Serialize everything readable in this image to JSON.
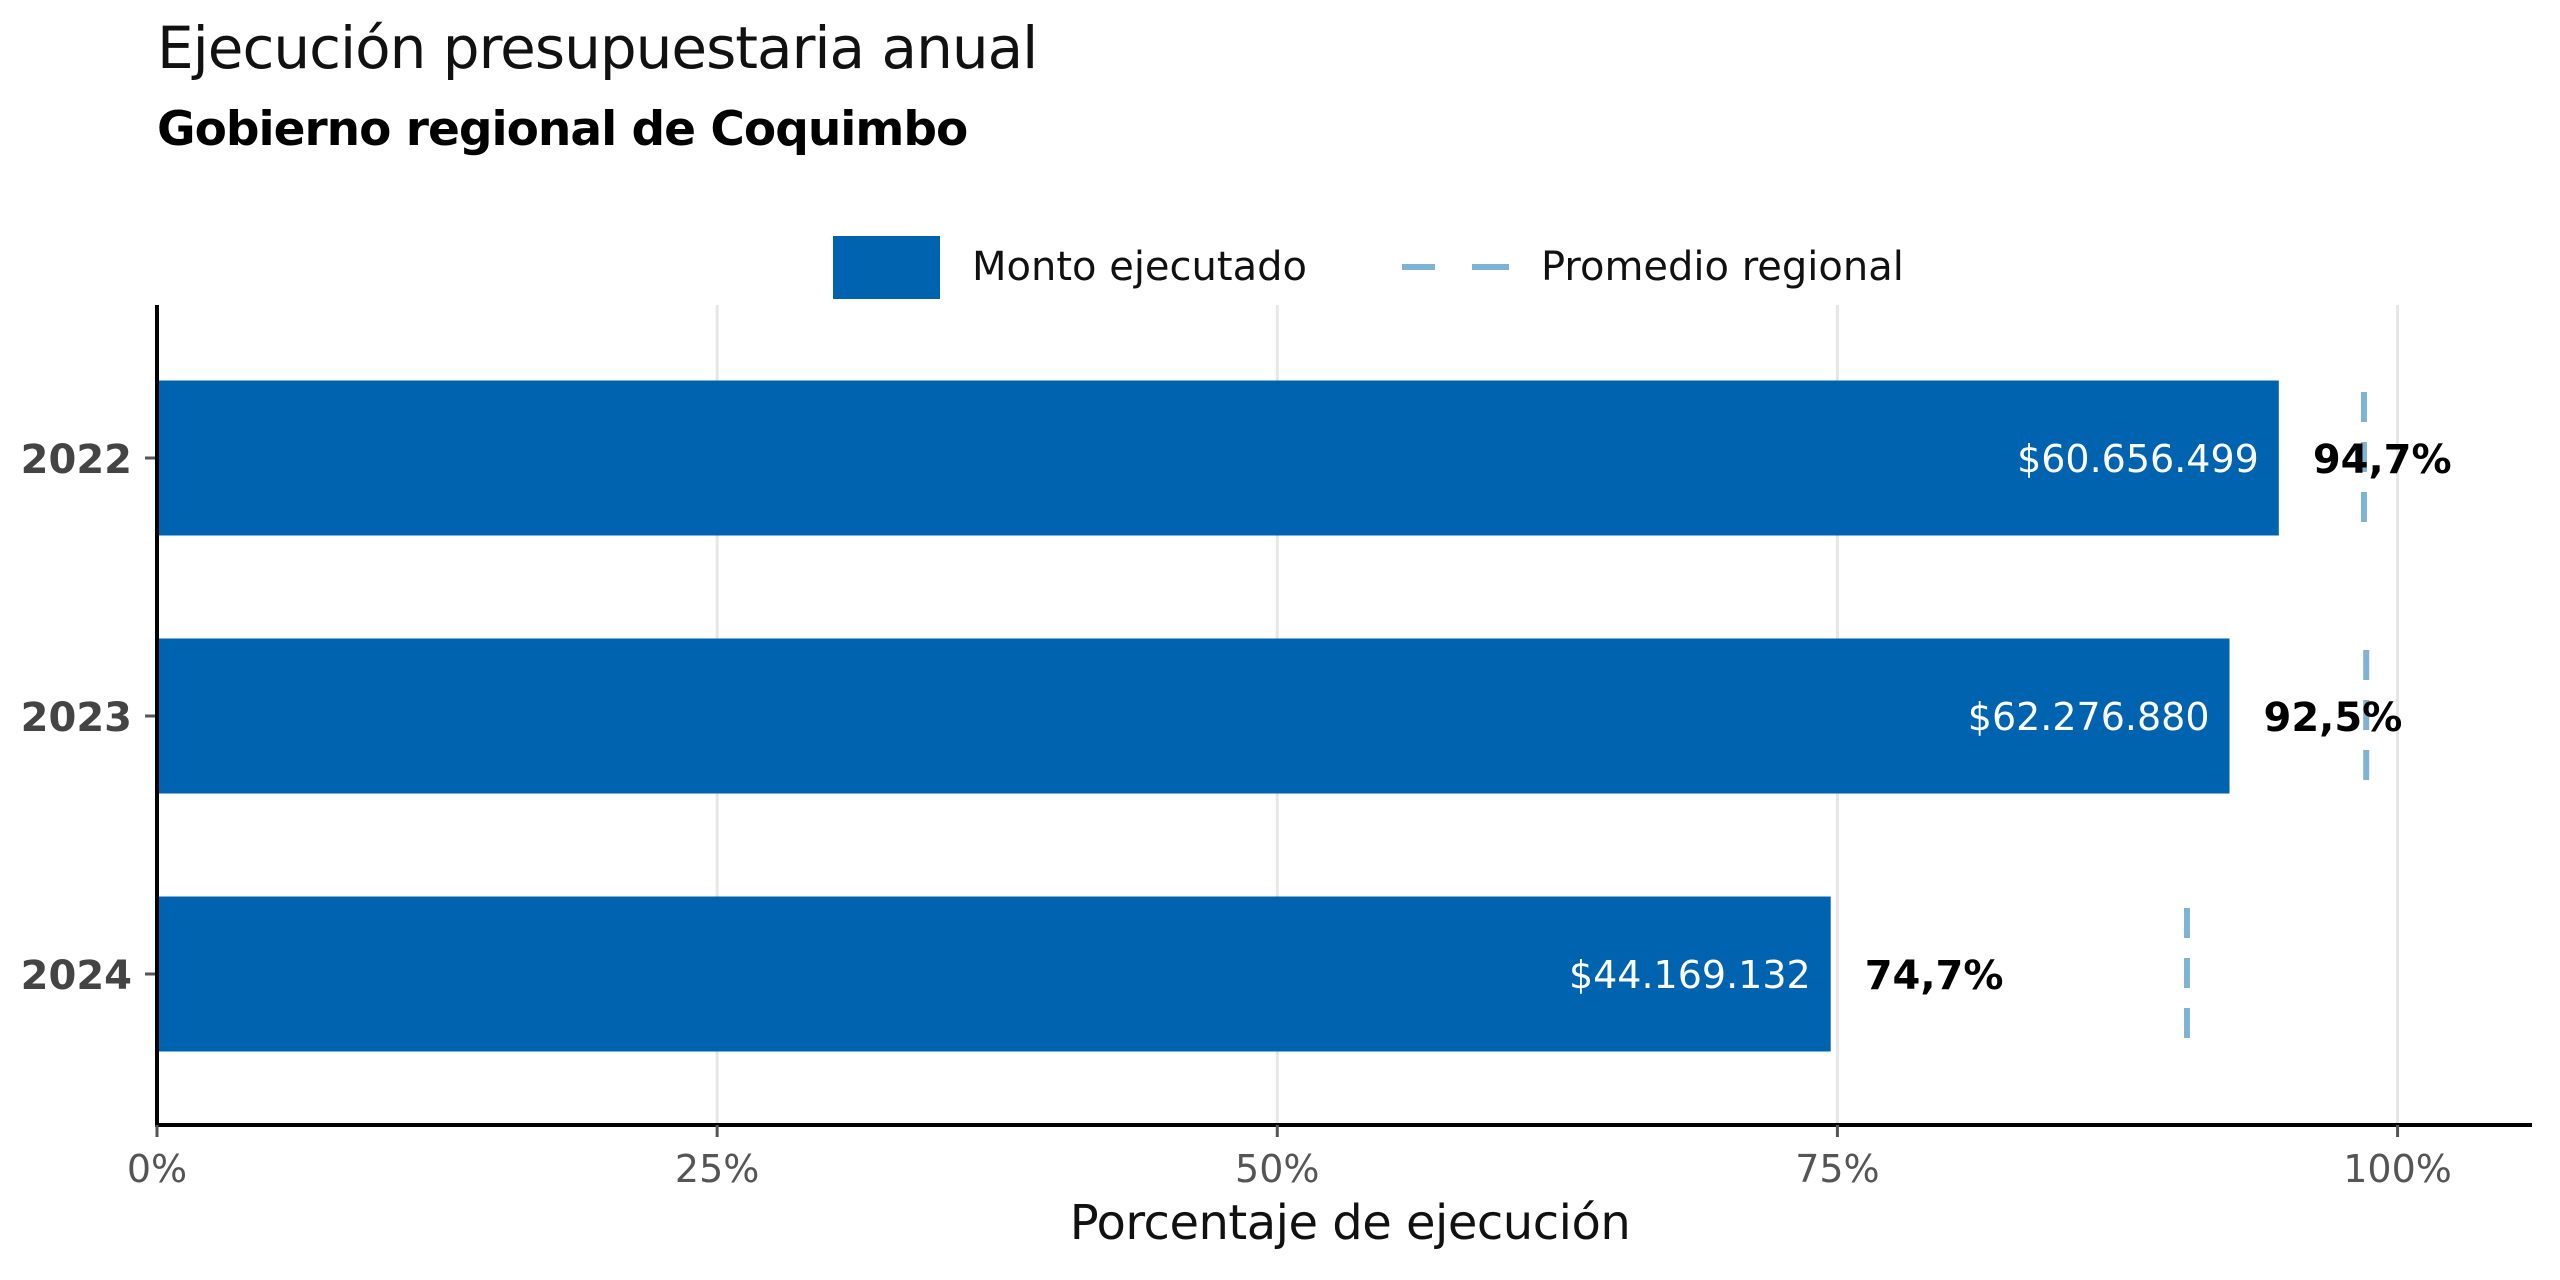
{
  "chart_data": {
    "type": "bar",
    "orientation": "horizontal",
    "title": "Ejecución presupuestaria anual",
    "subtitle": "Gobierno regional de Coquimbo",
    "categories": [
      "2022",
      "2023",
      "2024"
    ],
    "series": [
      {
        "name": "Monto ejecutado",
        "values": [
          94.7,
          92.5,
          74.7
        ],
        "value_labels": [
          "94,7%",
          "92,5%",
          "74,7%"
        ],
        "amount_labels": [
          "$60.656.499",
          "$62.276.880",
          "$44.169.132"
        ]
      },
      {
        "name": "Promedio regional",
        "style": "dashed",
        "values": [
          98.5,
          98.6,
          90.6
        ]
      }
    ],
    "xlabel": "Porcentaje de ejecución",
    "ylabel": "",
    "xlim": [
      0,
      106
    ],
    "xticks": [
      0,
      25,
      50,
      75,
      100
    ],
    "xtick_labels": [
      "0%",
      "25%",
      "50%",
      "75%",
      "100%"
    ],
    "grid": "vertical",
    "legend": "top-center"
  },
  "colors": {
    "bar": "#0063af",
    "average": "#7fb3d5",
    "grid": "#e6e6e6",
    "axis": "#000000",
    "tick_label": "#555555",
    "category_label": "#444444"
  }
}
